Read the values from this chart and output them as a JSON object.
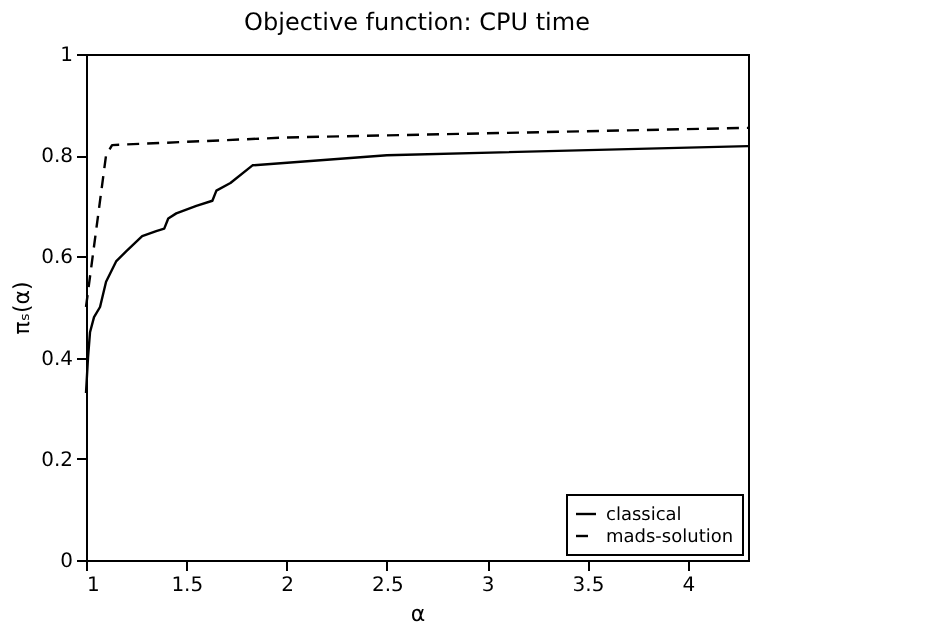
{
  "chart_data": {
    "type": "line",
    "title": "Objective function: CPU time",
    "xlabel": "α",
    "ylabel": "πₛ(α)",
    "xlim": [
      1,
      4.3
    ],
    "xticks": [
      1,
      1.5,
      2,
      2.5,
      3,
      3.5,
      4
    ],
    "ylim": [
      0,
      1
    ],
    "yticks": [
      0,
      0.2,
      0.4,
      0.6,
      0.8,
      1
    ],
    "grid": false,
    "legend": "bottom right",
    "series": [
      {
        "name": "classical",
        "color": "#000000",
        "line_style": "solid",
        "x": [
          1,
          1.01,
          1.02,
          1.04,
          1.07,
          1.1,
          1.15,
          1.2,
          1.28,
          1.35,
          1.39,
          1.41,
          1.45,
          1.55,
          1.63,
          1.65,
          1.72,
          1.83,
          2.5,
          4.3
        ],
        "values": [
          0.33,
          0.4,
          0.45,
          0.48,
          0.5,
          0.55,
          0.59,
          0.61,
          0.64,
          0.65,
          0.655,
          0.675,
          0.685,
          0.7,
          0.71,
          0.73,
          0.745,
          0.78,
          0.8,
          0.818
        ]
      },
      {
        "name": "mads-solution",
        "color": "#000000",
        "line_style": "dashed",
        "x": [
          1,
          1.05,
          1.1,
          1.13,
          2,
          4.3
        ],
        "values": [
          0.5,
          0.65,
          0.8,
          0.82,
          0.835,
          0.854
        ]
      }
    ]
  }
}
